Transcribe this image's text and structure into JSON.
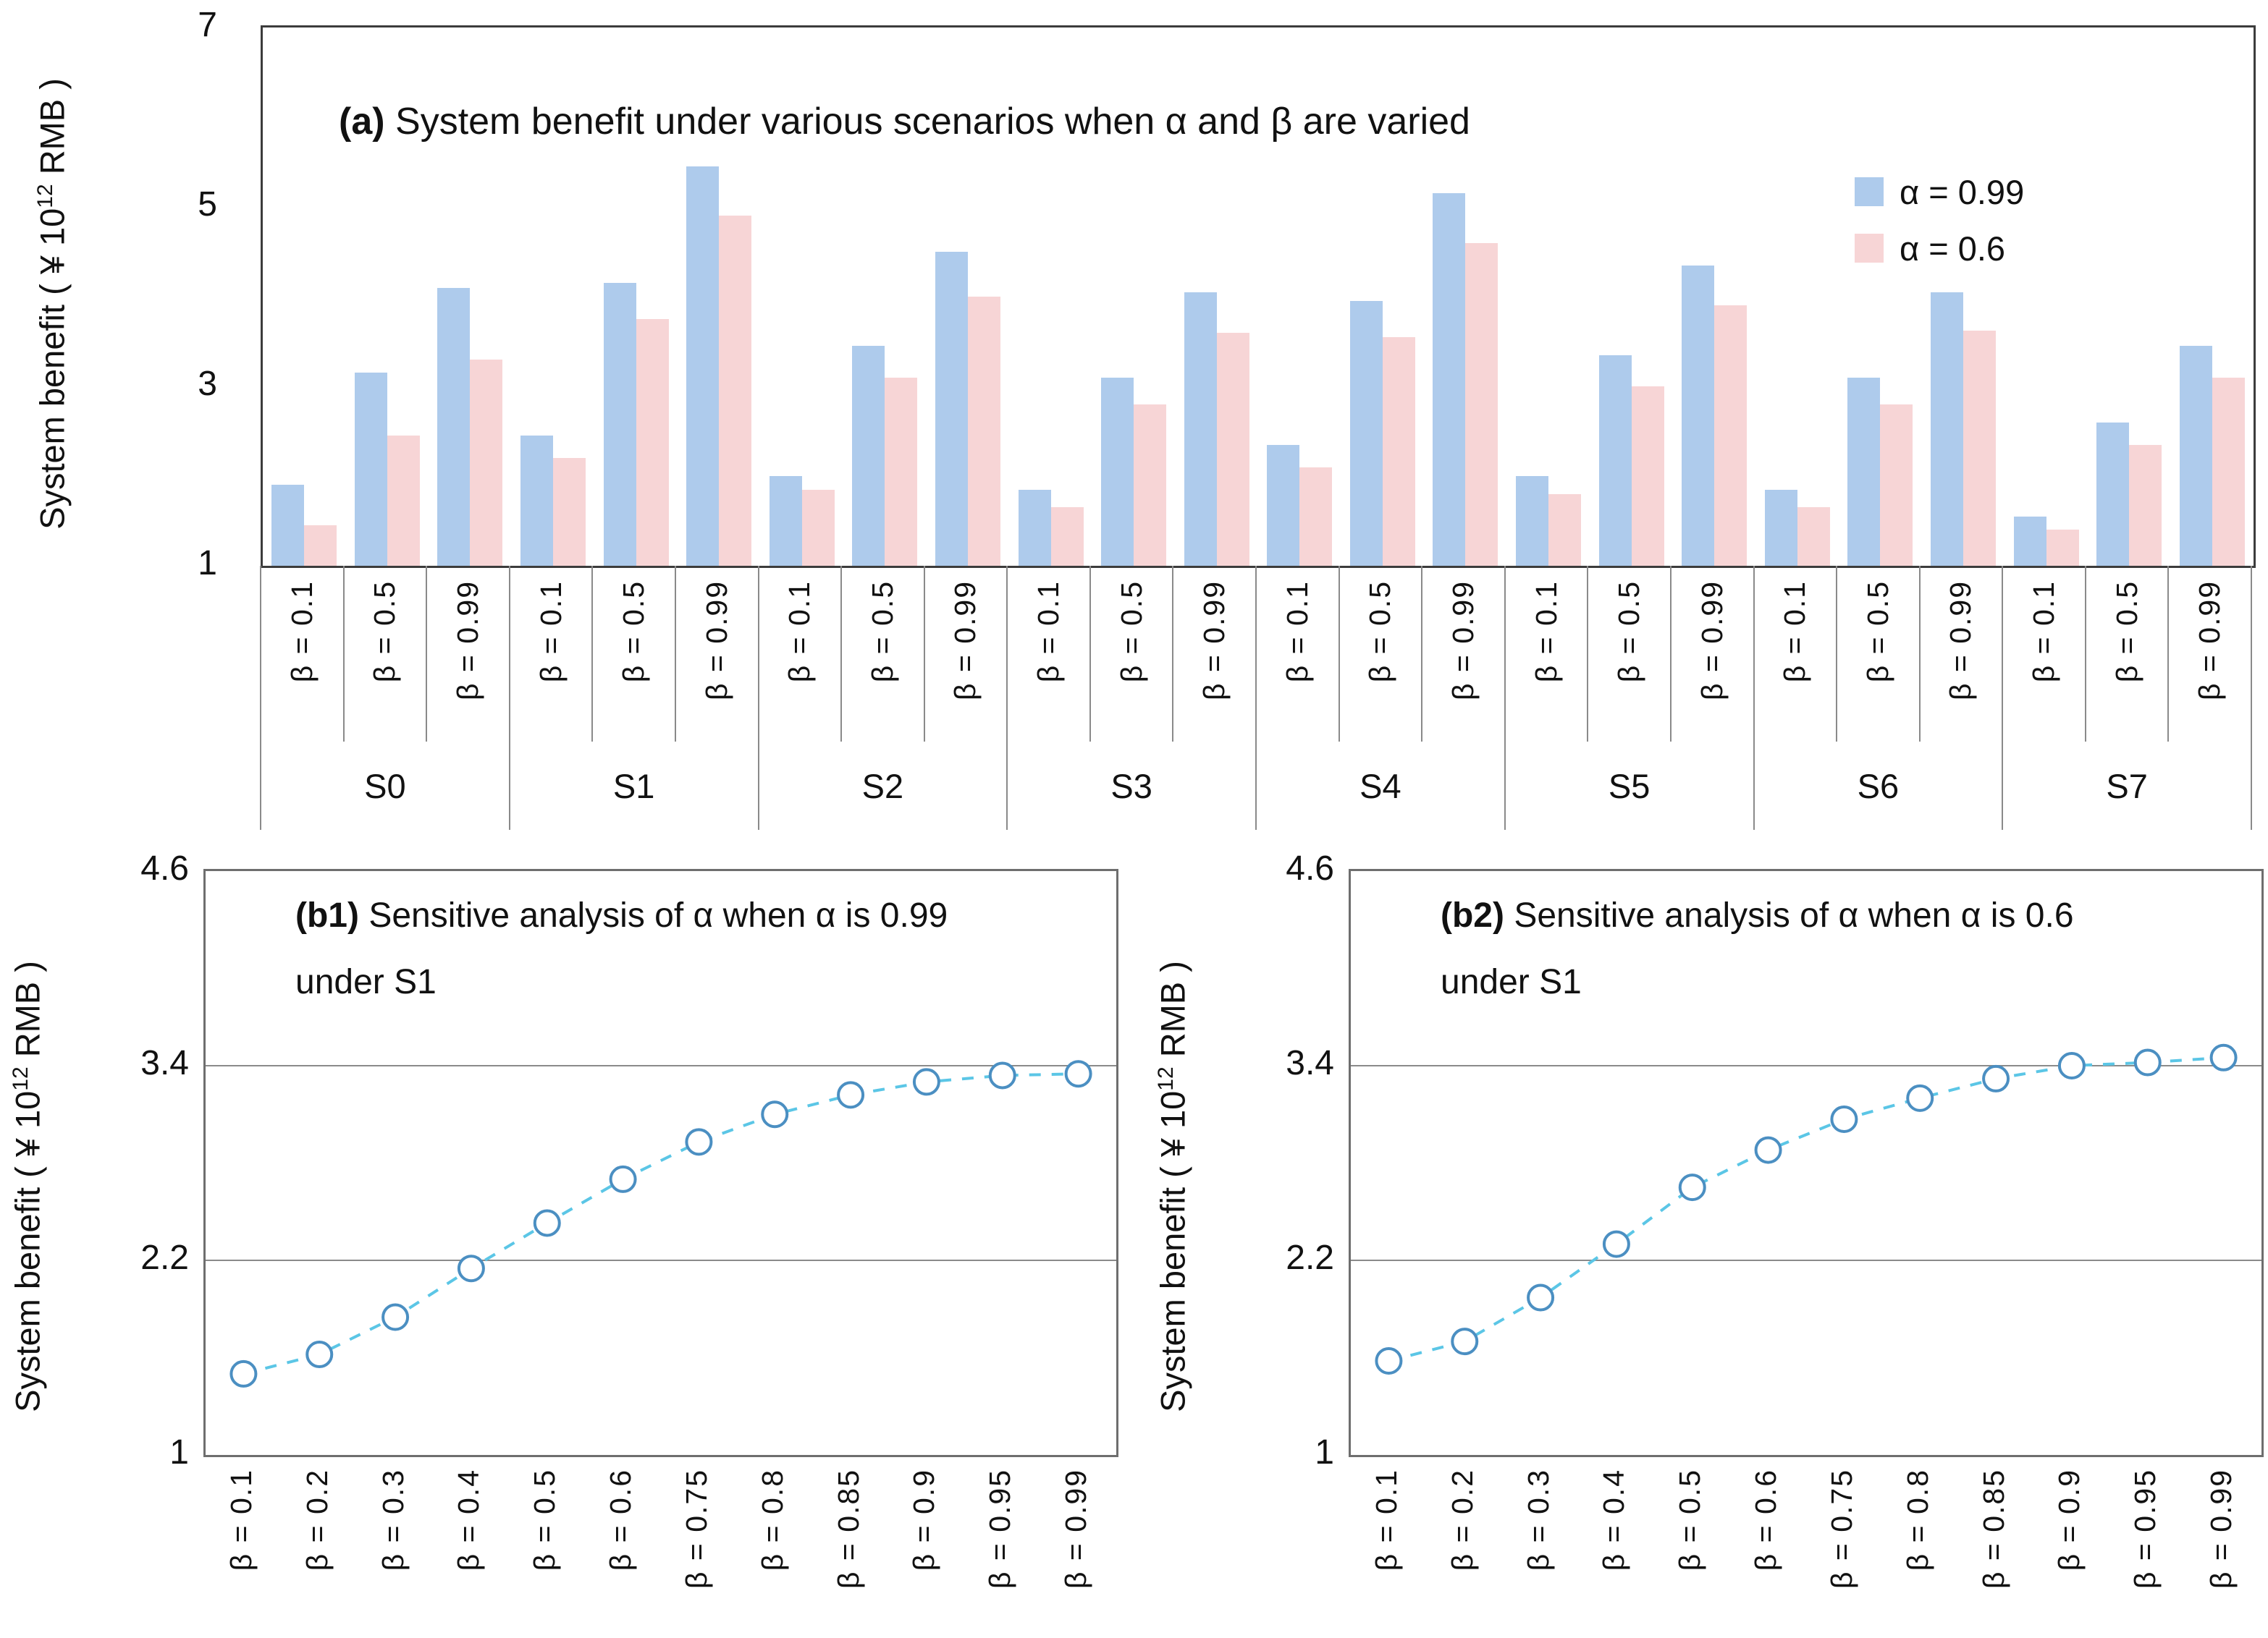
{
  "colors": {
    "bar_alpha_099": "#aecbec",
    "bar_alpha_06": "#f7d5d6",
    "line_dash": "#5bc6e6",
    "marker_stroke": "#4b8fc2",
    "frame_a": "#3c3c3c",
    "frame_b": "#6e6e6e",
    "grid": "#8a8a8a",
    "text": "#111111"
  },
  "ylabel": {
    "pre": "System benefit ( ¥ 10",
    "sup": "12",
    "post": "  RMB )"
  },
  "chart_data": [
    {
      "id": "a",
      "type": "bar",
      "title_prefix": "(a)",
      "title": " System benefit under various scenarios when α and β are varied",
      "ylim": [
        1,
        7
      ],
      "yticks": [
        7,
        5,
        3,
        1
      ],
      "grid": false,
      "legend_position": "top-right",
      "scenarios": [
        "S0",
        "S1",
        "S2",
        "S3",
        "S4",
        "S5",
        "S6",
        "S7"
      ],
      "beta_labels": [
        "β = 0.1",
        "β = 0.5",
        "β = 0.99"
      ],
      "legend": [
        {
          "label": "α = 0.99",
          "color_key": "bar_alpha_099"
        },
        {
          "label": "α = 0.6",
          "color_key": "bar_alpha_06"
        }
      ],
      "series": [
        {
          "name": "α = 0.99",
          "color_key": "bar_alpha_099",
          "values": [
            1.9,
            3.15,
            4.1,
            2.45,
            4.15,
            5.45,
            2.0,
            3.45,
            4.5,
            1.85,
            3.1,
            4.05,
            2.35,
            3.95,
            5.15,
            2.0,
            3.35,
            4.35,
            1.85,
            3.1,
            4.05,
            1.55,
            2.6,
            3.45
          ]
        },
        {
          "name": "α = 0.6",
          "color_key": "bar_alpha_06",
          "values": [
            1.45,
            2.45,
            3.3,
            2.2,
            3.75,
            4.9,
            1.85,
            3.1,
            4.0,
            1.65,
            2.8,
            3.6,
            2.1,
            3.55,
            4.6,
            1.8,
            3.0,
            3.9,
            1.65,
            2.8,
            3.62,
            1.4,
            2.35,
            3.1
          ]
        }
      ]
    },
    {
      "id": "b1",
      "type": "line",
      "title_prefix": "(b1)",
      "title_line1": " Sensitive analysis of α when α is 0.99",
      "title_line2": "under S1",
      "ylim": [
        1,
        4.6
      ],
      "yticks": [
        4.6,
        3.4,
        2.2,
        1
      ],
      "gridlines": [
        3.4,
        2.2
      ],
      "line_style": "dashed",
      "marker": "open-circle",
      "x_labels": [
        "β = 0.1",
        "β = 0.2",
        "β = 0.3",
        "β = 0.4",
        "β = 0.5",
        "β = 0.6",
        "β = 0.75",
        "β = 0.8",
        "β = 0.85",
        "β = 0.9",
        "β = 0.95",
        "β = 0.99"
      ],
      "values": [
        1.5,
        1.62,
        1.85,
        2.15,
        2.43,
        2.7,
        2.93,
        3.1,
        3.22,
        3.3,
        3.34,
        3.35
      ]
    },
    {
      "id": "b2",
      "type": "line",
      "title_prefix": "(b2)",
      "title_line1": " Sensitive analysis of α when α is 0.6",
      "title_line2": "under S1",
      "ylim": [
        1,
        4.6
      ],
      "yticks": [
        4.6,
        3.4,
        2.2,
        1
      ],
      "gridlines": [
        3.4,
        2.2
      ],
      "line_style": "dashed",
      "marker": "open-circle",
      "x_labels": [
        "β = 0.1",
        "β = 0.2",
        "β = 0.3",
        "β = 0.4",
        "β = 0.5",
        "β = 0.6",
        "β = 0.75",
        "β = 0.8",
        "β = 0.85",
        "β = 0.9",
        "β = 0.95",
        "β = 0.99"
      ],
      "values": [
        1.58,
        1.7,
        1.97,
        2.3,
        2.65,
        2.88,
        3.07,
        3.2,
        3.32,
        3.4,
        3.42,
        3.45
      ]
    }
  ]
}
